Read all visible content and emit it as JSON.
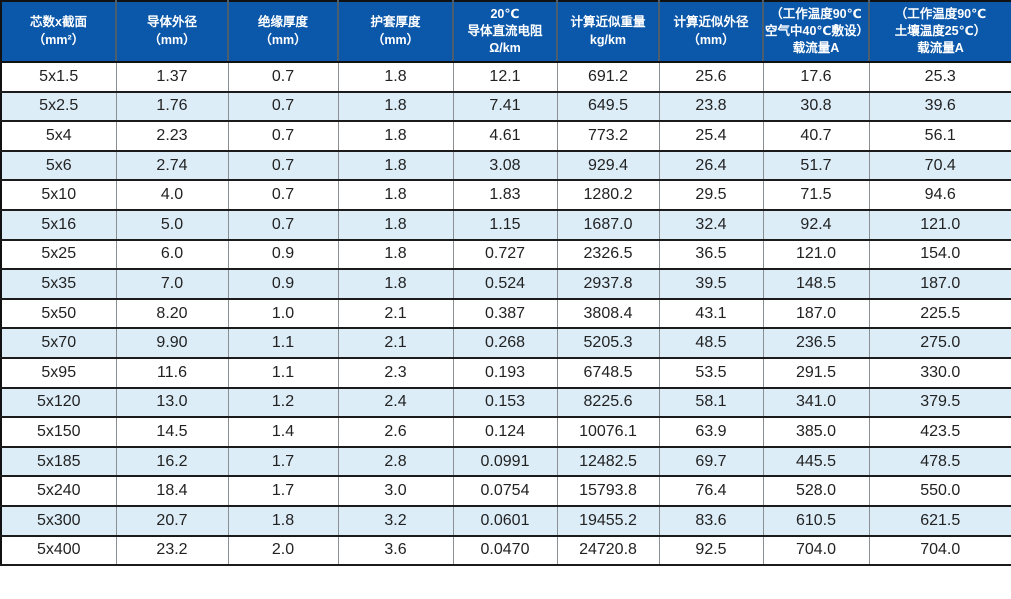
{
  "colors": {
    "header_bg": "#0b58aa",
    "header_text": "#ffffff",
    "header_divider": "#4c5d6d",
    "row_alt_bg": "#dcedf8",
    "row_bg": "#ffffff",
    "grid_horizontal": "#1b1b1b",
    "grid_vertical": "#8a8f94",
    "text": "#222222"
  },
  "table": {
    "columns": [
      {
        "lines": [
          "芯数x截面",
          "（mm²）"
        ]
      },
      {
        "lines": [
          "导体外径",
          "（mm）"
        ]
      },
      {
        "lines": [
          "绝缘厚度",
          "（mm）"
        ]
      },
      {
        "lines": [
          "护套厚度",
          "（mm）"
        ]
      },
      {
        "lines": [
          "20℃",
          "导体直流电阻",
          "Ω/km"
        ]
      },
      {
        "lines": [
          "计算近似重量",
          "kg/km"
        ]
      },
      {
        "lines": [
          "计算近似外径",
          "（mm）"
        ]
      },
      {
        "lines": [
          "（工作温度90℃",
          "空气中40℃敷设）",
          "载流量A"
        ]
      },
      {
        "lines": [
          "（工作温度90℃",
          "土壤温度25℃）",
          "载流量A"
        ]
      }
    ],
    "rows": [
      [
        "5x1.5",
        "1.37",
        "0.7",
        "1.8",
        "12.1",
        "691.2",
        "25.6",
        "17.6",
        "25.3"
      ],
      [
        "5x2.5",
        "1.76",
        "0.7",
        "1.8",
        "7.41",
        "649.5",
        "23.8",
        "30.8",
        "39.6"
      ],
      [
        "5x4",
        "2.23",
        "0.7",
        "1.8",
        "4.61",
        "773.2",
        "25.4",
        "40.7",
        "56.1"
      ],
      [
        "5x6",
        "2.74",
        "0.7",
        "1.8",
        "3.08",
        "929.4",
        "26.4",
        "51.7",
        "70.4"
      ],
      [
        "5x10",
        "4.0",
        "0.7",
        "1.8",
        "1.83",
        "1280.2",
        "29.5",
        "71.5",
        "94.6"
      ],
      [
        "5x16",
        "5.0",
        "0.7",
        "1.8",
        "1.15",
        "1687.0",
        "32.4",
        "92.4",
        "121.0"
      ],
      [
        "5x25",
        "6.0",
        "0.9",
        "1.8",
        "0.727",
        "2326.5",
        "36.5",
        "121.0",
        "154.0"
      ],
      [
        "5x35",
        "7.0",
        "0.9",
        "1.8",
        "0.524",
        "2937.8",
        "39.5",
        "148.5",
        "187.0"
      ],
      [
        "5x50",
        "8.20",
        "1.0",
        "2.1",
        "0.387",
        "3808.4",
        "43.1",
        "187.0",
        "225.5"
      ],
      [
        "5x70",
        "9.90",
        "1.1",
        "2.1",
        "0.268",
        "5205.3",
        "48.5",
        "236.5",
        "275.0"
      ],
      [
        "5x95",
        "11.6",
        "1.1",
        "2.3",
        "0.193",
        "6748.5",
        "53.5",
        "291.5",
        "330.0"
      ],
      [
        "5x120",
        "13.0",
        "1.2",
        "2.4",
        "0.153",
        "8225.6",
        "58.1",
        "341.0",
        "379.5"
      ],
      [
        "5x150",
        "14.5",
        "1.4",
        "2.6",
        "0.124",
        "10076.1",
        "63.9",
        "385.0",
        "423.5"
      ],
      [
        "5x185",
        "16.2",
        "1.7",
        "2.8",
        "0.0991",
        "12482.5",
        "69.7",
        "445.5",
        "478.5"
      ],
      [
        "5x240",
        "18.4",
        "1.7",
        "3.0",
        "0.0754",
        "15793.8",
        "76.4",
        "528.0",
        "550.0"
      ],
      [
        "5x300",
        "20.7",
        "1.8",
        "3.2",
        "0.0601",
        "19455.2",
        "83.6",
        "610.5",
        "621.5"
      ],
      [
        "5x400",
        "23.2",
        "2.0",
        "3.6",
        "0.0470",
        "24720.8",
        "92.5",
        "704.0",
        "704.0"
      ]
    ]
  }
}
